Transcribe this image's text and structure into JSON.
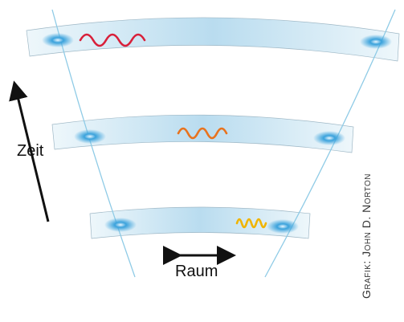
{
  "labels": {
    "time": "Zeit",
    "space": "Raum",
    "credit": "Grafik: John D. Norton"
  }
}
